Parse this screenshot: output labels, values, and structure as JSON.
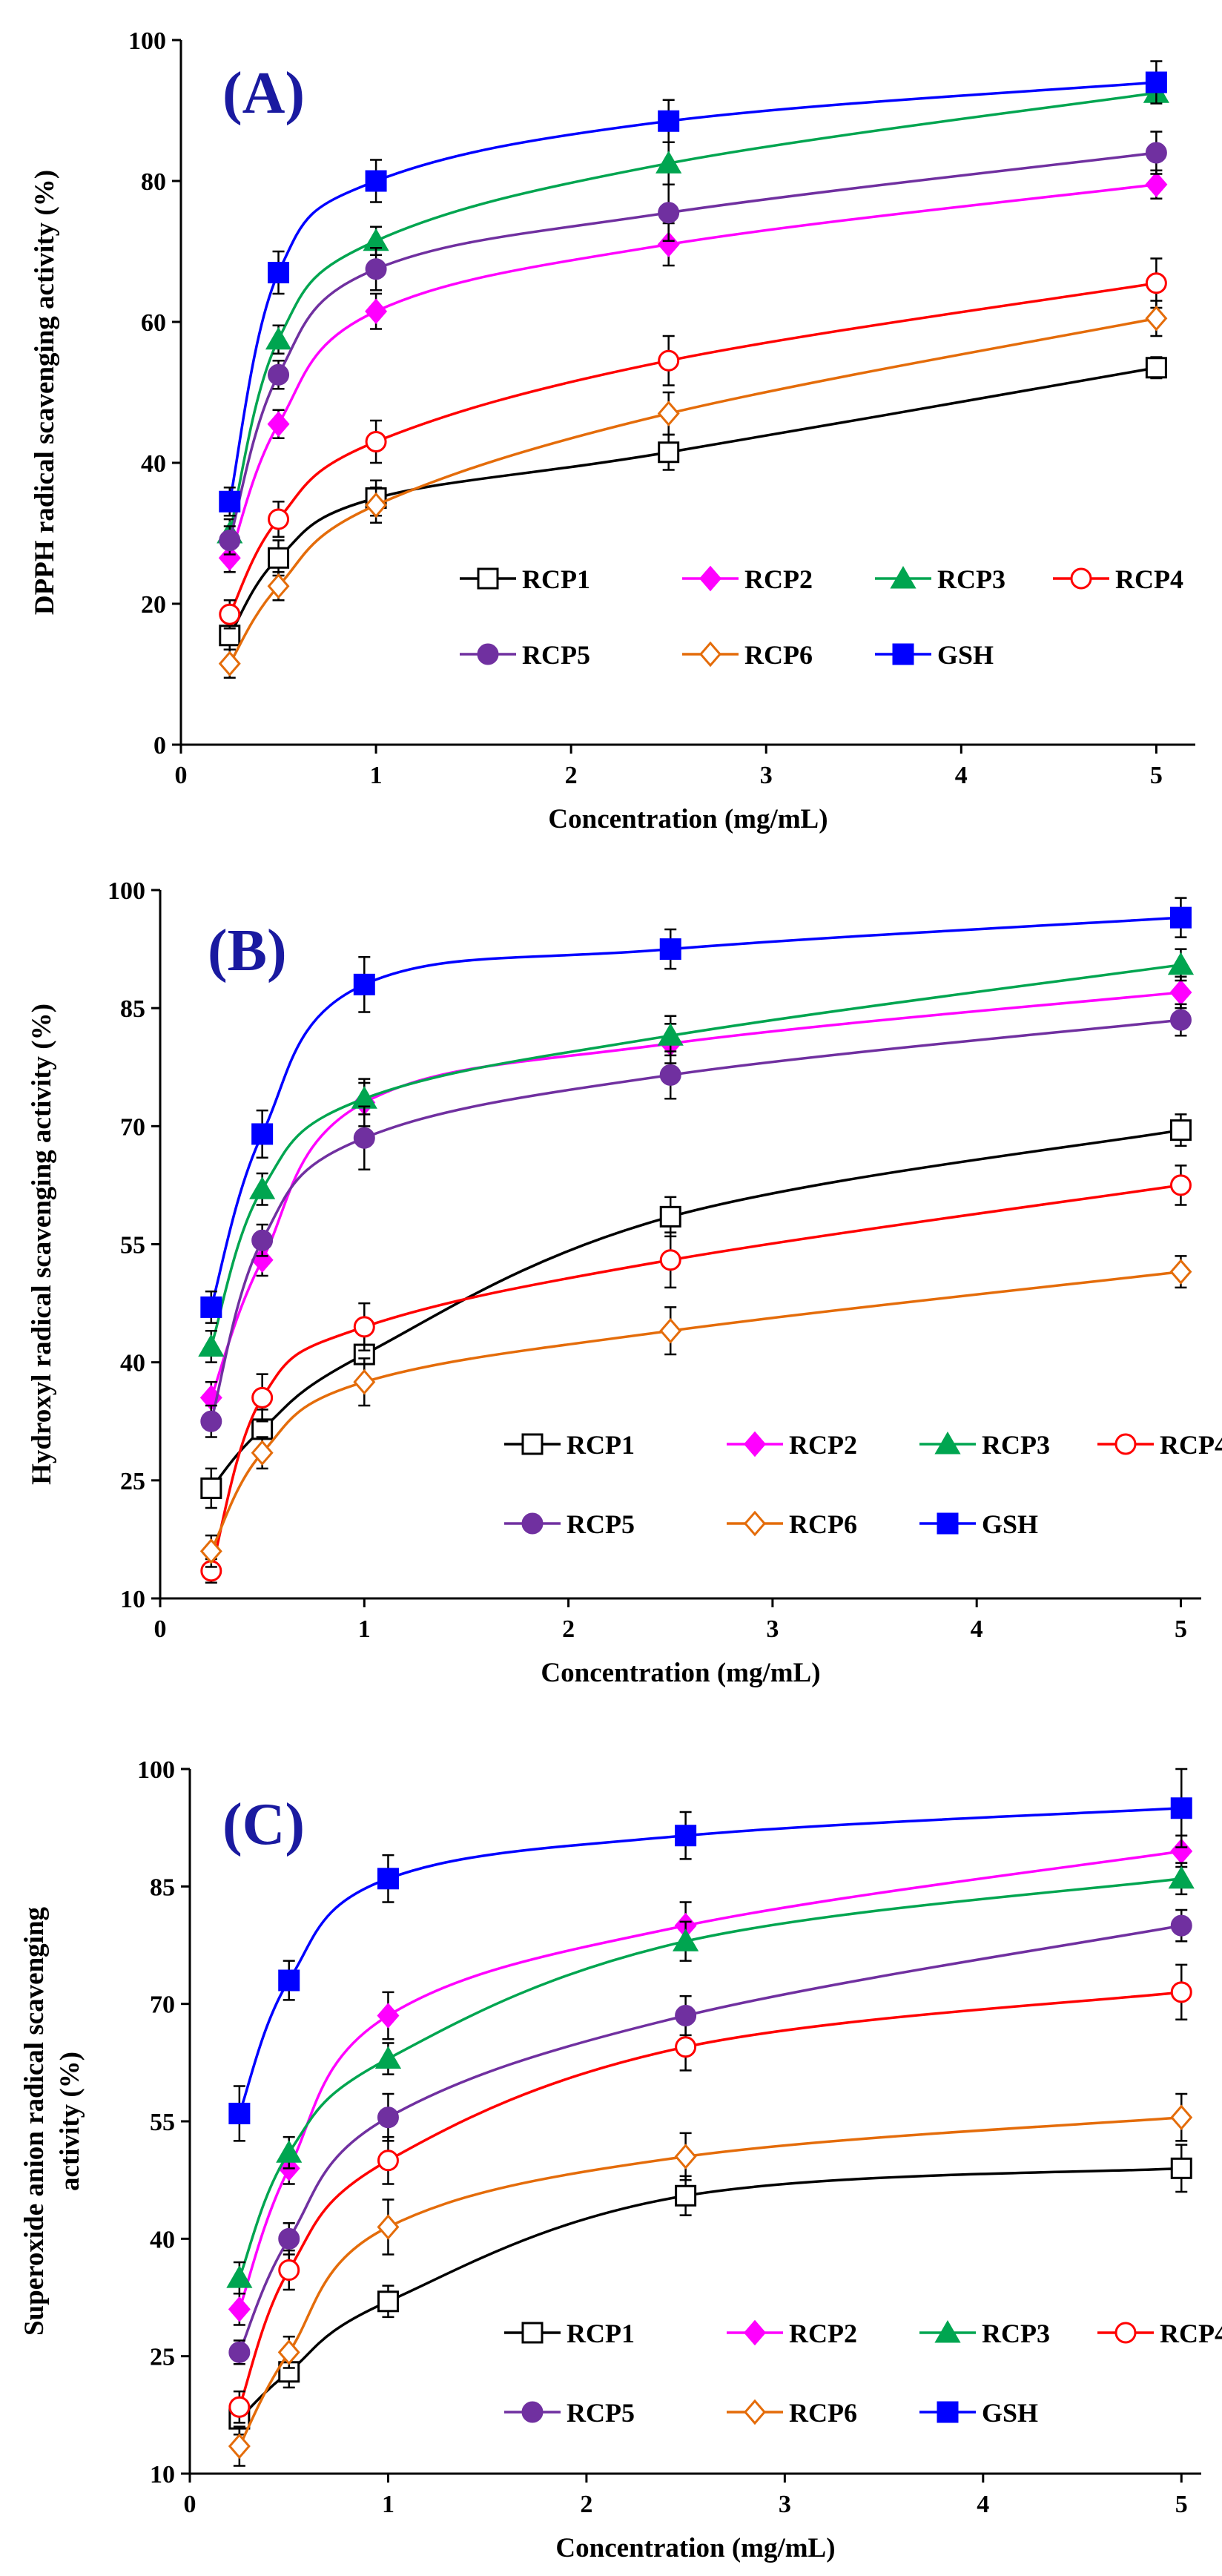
{
  "figure": {
    "legend_label": "Legend"
  },
  "series_style": {
    "RCP1": {
      "color": "#000000",
      "marker": "square",
      "filled": false
    },
    "RCP2": {
      "color": "#ff00ff",
      "marker": "diamond",
      "filled": true
    },
    "RCP3": {
      "color": "#00a550",
      "marker": "triangle",
      "filled": true
    },
    "RCP4": {
      "color": "#ff0000",
      "marker": "circle",
      "filled": false
    },
    "RCP5": {
      "color": "#7030a0",
      "marker": "circle",
      "filled": true
    },
    "RCP6": {
      "color": "#e46c0a",
      "marker": "diamond",
      "filled": false
    },
    "GSH": {
      "color": "#0000ff",
      "marker": "square",
      "filled": true
    }
  },
  "chart_data": [
    {
      "type": "line",
      "panel": "(A)",
      "xlabel": "Concentration (mg/mL)",
      "ylabel": "DPPH radical scavenging activity (%)",
      "xlim": [
        0,
        5.2
      ],
      "ylim": [
        0,
        100
      ],
      "xticks": [
        0,
        1,
        2,
        3,
        4,
        5
      ],
      "yticks": [
        0,
        20,
        40,
        60,
        80,
        100
      ],
      "x": [
        0.25,
        0.5,
        1,
        2.5,
        5
      ],
      "legend_position": "lower-right",
      "series": [
        {
          "name": "RCP1",
          "values": [
            15.5,
            26.5,
            35.0,
            41.5,
            53.5
          ],
          "errors": [
            2.0,
            2.5,
            2.5,
            2.5,
            1.5
          ]
        },
        {
          "name": "RCP2",
          "values": [
            26.5,
            45.5,
            61.5,
            71.0,
            79.5
          ],
          "errors": [
            2.0,
            2.0,
            2.5,
            3.0,
            2.0
          ]
        },
        {
          "name": "RCP3",
          "values": [
            30.0,
            57.5,
            71.5,
            82.5,
            92.5
          ],
          "errors": [
            2.0,
            2.0,
            2.0,
            3.0,
            1.0
          ]
        },
        {
          "name": "RCP4",
          "values": [
            18.5,
            32.0,
            43.0,
            54.5,
            65.5
          ],
          "errors": [
            2.0,
            2.5,
            3.0,
            3.5,
            3.5
          ]
        },
        {
          "name": "RCP5",
          "values": [
            29.0,
            52.5,
            67.5,
            75.5,
            84.0
          ],
          "errors": [
            2.0,
            2.0,
            3.0,
            4.0,
            3.0
          ]
        },
        {
          "name": "RCP6",
          "values": [
            11.5,
            22.5,
            34.0,
            47.0,
            60.5
          ],
          "errors": [
            2.0,
            2.0,
            2.5,
            3.0,
            2.5
          ]
        },
        {
          "name": "GSH",
          "values": [
            34.5,
            67.0,
            80.0,
            88.5,
            94.0
          ],
          "errors": [
            2.0,
            3.0,
            3.0,
            3.0,
            3.0
          ]
        }
      ]
    },
    {
      "type": "line",
      "panel": "(B)",
      "xlabel": "Concentration (mg/mL)",
      "ylabel": "Hydroxyl radical scavenging activity (%)",
      "xlim": [
        0,
        5.1
      ],
      "ylim": [
        10,
        100
      ],
      "xticks": [
        0,
        1,
        2,
        3,
        4,
        5
      ],
      "yticks": [
        10,
        25,
        40,
        55,
        70,
        85,
        100
      ],
      "x": [
        0.25,
        0.5,
        1,
        2.5,
        5
      ],
      "legend_position": "lower-right",
      "series": [
        {
          "name": "RCP1",
          "values": [
            24.0,
            31.5,
            41.0,
            58.5,
            69.5
          ],
          "errors": [
            2.5,
            2.5,
            3.0,
            2.5,
            2.0
          ]
        },
        {
          "name": "RCP2",
          "values": [
            35.5,
            53.0,
            73.0,
            80.5,
            87.0
          ],
          "errors": [
            2.0,
            2.0,
            3.0,
            2.5,
            2.0
          ]
        },
        {
          "name": "RCP3",
          "values": [
            42.0,
            62.0,
            73.5,
            81.5,
            90.5
          ],
          "errors": [
            2.0,
            2.0,
            2.0,
            2.5,
            2.0
          ]
        },
        {
          "name": "RCP4",
          "values": [
            13.5,
            35.5,
            44.5,
            53.0,
            62.5
          ],
          "errors": [
            1.5,
            3.0,
            3.0,
            3.5,
            2.5
          ]
        },
        {
          "name": "RCP5",
          "values": [
            32.5,
            55.5,
            68.5,
            76.5,
            83.5
          ],
          "errors": [
            2.0,
            2.0,
            4.0,
            3.0,
            2.0
          ]
        },
        {
          "name": "RCP6",
          "values": [
            16.0,
            28.5,
            37.5,
            44.0,
            51.5
          ],
          "errors": [
            2.0,
            2.0,
            3.0,
            3.0,
            2.0
          ]
        },
        {
          "name": "GSH",
          "values": [
            47.0,
            69.0,
            88.0,
            92.5,
            96.5
          ],
          "errors": [
            2.0,
            3.0,
            3.5,
            2.5,
            2.5
          ]
        }
      ]
    },
    {
      "type": "line",
      "panel": "(C)",
      "xlabel": "Concentration (mg/mL)",
      "ylabel": "Superoxide anion radical scavenging activity (%)",
      "ylabel_lines": [
        "Superoxide anion radical scavenging",
        "activity (%)"
      ],
      "xlim": [
        0,
        5.1
      ],
      "ylim": [
        10,
        100
      ],
      "xticks": [
        0,
        1,
        2,
        3,
        4,
        5
      ],
      "yticks": [
        10,
        25,
        40,
        55,
        70,
        85,
        100
      ],
      "x": [
        0.25,
        0.5,
        1,
        2.5,
        5
      ],
      "legend_position": "lower-right",
      "series": [
        {
          "name": "RCP1",
          "values": [
            17.0,
            23.0,
            32.0,
            45.5,
            49.0
          ],
          "errors": [
            2.0,
            2.0,
            2.0,
            2.5,
            3.0
          ]
        },
        {
          "name": "RCP2",
          "values": [
            31.0,
            49.0,
            68.5,
            80.0,
            89.5
          ],
          "errors": [
            2.0,
            2.0,
            3.0,
            3.0,
            2.0
          ]
        },
        {
          "name": "RCP3",
          "values": [
            35.0,
            51.0,
            63.0,
            78.0,
            86.0
          ],
          "errors": [
            2.0,
            2.0,
            2.0,
            2.5,
            2.0
          ]
        },
        {
          "name": "RCP4",
          "values": [
            18.5,
            36.0,
            50.0,
            64.5,
            71.5
          ],
          "errors": [
            2.0,
            2.5,
            3.0,
            3.0,
            3.5
          ]
        },
        {
          "name": "RCP5",
          "values": [
            25.5,
            40.0,
            55.5,
            68.5,
            80.0
          ],
          "errors": [
            1.5,
            2.0,
            3.0,
            2.5,
            2.0
          ]
        },
        {
          "name": "RCP6",
          "values": [
            13.5,
            25.5,
            41.5,
            50.5,
            55.5
          ],
          "errors": [
            2.5,
            2.0,
            3.5,
            3.0,
            3.0
          ]
        },
        {
          "name": "GSH",
          "values": [
            56.0,
            73.0,
            86.0,
            91.5,
            95.0
          ],
          "errors": [
            3.5,
            2.5,
            3.0,
            3.0,
            5.0
          ]
        }
      ]
    }
  ]
}
